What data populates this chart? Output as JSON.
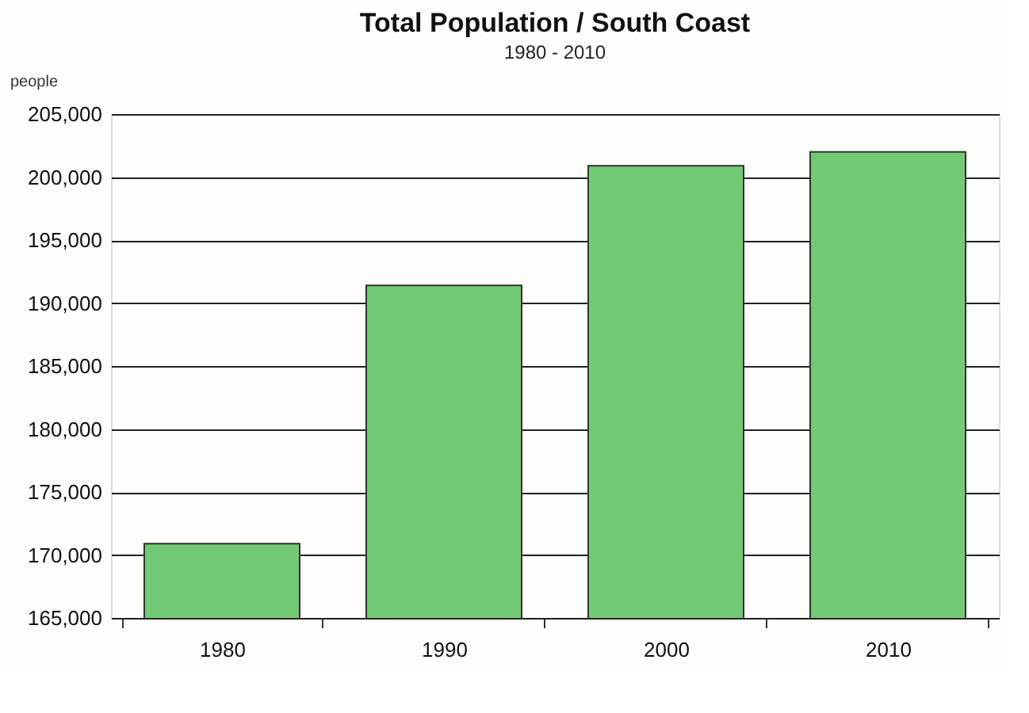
{
  "chart_data": {
    "type": "bar",
    "title": "Total Population / South Coast",
    "subtitle": "1980 - 2010",
    "ylabel": "people",
    "categories": [
      "1980",
      "1990",
      "2000",
      "2010"
    ],
    "values": [
      170900,
      191400,
      200900,
      202000
    ],
    "color": "#72cb74",
    "ylim": [
      165000,
      205000
    ],
    "yticks": [
      {
        "value": 165000,
        "label": "165,000"
      },
      {
        "value": 170000,
        "label": "170,000"
      },
      {
        "value": 175000,
        "label": "175,000"
      },
      {
        "value": 180000,
        "label": "180,000"
      },
      {
        "value": 185000,
        "label": "185,000"
      },
      {
        "value": 190000,
        "label": "190,000"
      },
      {
        "value": 195000,
        "label": "195,000"
      },
      {
        "value": 200000,
        "label": "200,000"
      },
      {
        "value": 205000,
        "label": "205,000"
      }
    ],
    "grid": "y"
  }
}
